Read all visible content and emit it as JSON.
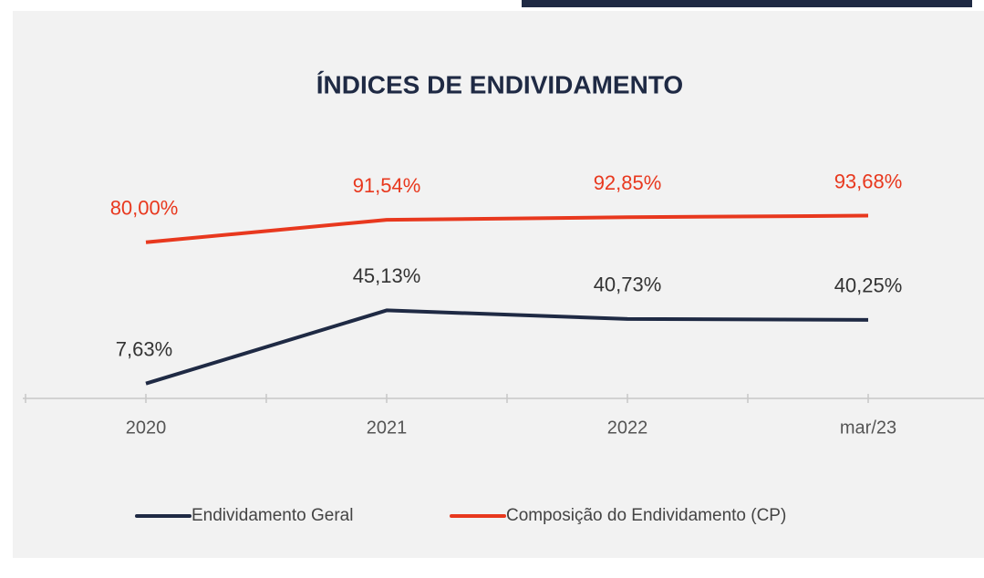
{
  "chart_data": {
    "type": "line",
    "title": "ÍNDICES DE ENDIVIDAMENTO",
    "categories": [
      "2020",
      "2021",
      "2022",
      "mar/23"
    ],
    "series": [
      {
        "name": "Endividamento Geral",
        "color": "#1f2a44",
        "values": [
          7.63,
          45.13,
          40.73,
          40.25
        ],
        "value_labels": [
          "7,63%",
          "45,13%",
          "40,73%",
          "40,25%"
        ]
      },
      {
        "name": "Composição do Endividamento (CP)",
        "color": "#e8381e",
        "values": [
          80.0,
          91.54,
          92.85,
          93.68
        ],
        "value_labels": [
          "80,00%",
          "91,54%",
          "92,85%",
          "93,68%"
        ]
      }
    ],
    "legend": "bottom"
  }
}
